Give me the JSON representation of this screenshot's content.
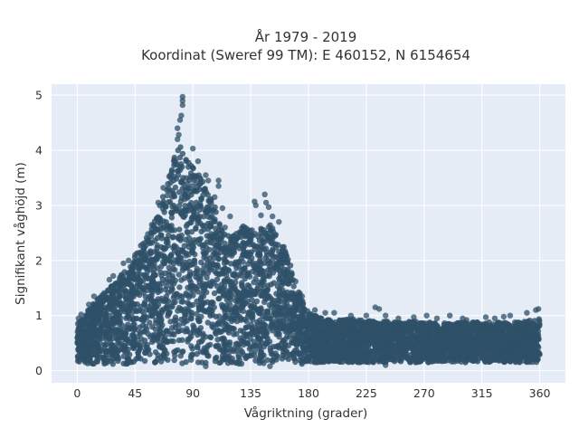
{
  "chart_data": {
    "type": "scatter",
    "title_line1": "År 1979 - 2019",
    "title_line2": "Koordinat (Sweref 99 TM): E 460152, N 6154654",
    "xlabel": "Vågriktning (grader)",
    "ylabel": "Signifikant våghöjd (m)",
    "xlim": [
      -20,
      380
    ],
    "ylim": [
      -0.22,
      5.2
    ],
    "x_ticks": [
      0,
      45,
      90,
      135,
      180,
      225,
      270,
      315,
      360
    ],
    "y_ticks": [
      0,
      1,
      2,
      3,
      4,
      5
    ],
    "grid": true,
    "background_color": "#e5ecf6",
    "marker_color": "#2e5068",
    "envelope": {
      "x": [
        0,
        10,
        20,
        30,
        40,
        50,
        60,
        70,
        75,
        80,
        85,
        90,
        95,
        100,
        105,
        110,
        115,
        120,
        125,
        130,
        135,
        140,
        145,
        150,
        155,
        160,
        165,
        170,
        175,
        180,
        190,
        200,
        210,
        220,
        230,
        240,
        250,
        260,
        270,
        280,
        290,
        300,
        310,
        320,
        330,
        340,
        350,
        360
      ],
      "y_min": [
        0.15,
        0.12,
        0.12,
        0.12,
        0.12,
        0.12,
        0.12,
        0.12,
        0.12,
        0.12,
        0.12,
        0.12,
        0.12,
        0.12,
        0.12,
        0.12,
        0.12,
        0.12,
        0.12,
        0.12,
        0.12,
        0.12,
        0.12,
        0.12,
        0.12,
        0.12,
        0.12,
        0.12,
        0.12,
        0.12,
        0.15,
        0.15,
        0.15,
        0.15,
        0.15,
        0.15,
        0.15,
        0.15,
        0.15,
        0.15,
        0.15,
        0.15,
        0.15,
        0.15,
        0.15,
        0.15,
        0.15,
        0.15
      ],
      "y_max": [
        0.85,
        1.15,
        1.4,
        1.65,
        1.9,
        2.3,
        2.7,
        3.4,
        3.9,
        4.1,
        3.95,
        3.7,
        3.55,
        3.35,
        3.1,
        2.8,
        2.55,
        2.45,
        2.5,
        2.7,
        2.6,
        2.55,
        2.6,
        2.7,
        2.5,
        2.3,
        2.0,
        1.6,
        1.3,
        1.05,
        0.95,
        0.9,
        0.95,
        0.92,
        0.9,
        0.9,
        0.88,
        0.9,
        0.88,
        0.88,
        0.85,
        0.88,
        0.88,
        0.88,
        0.88,
        0.88,
        0.9,
        0.95
      ]
    },
    "outliers": [
      {
        "x": 82,
        "y": 4.97
      },
      {
        "x": 82,
        "y": 4.9
      },
      {
        "x": 82,
        "y": 4.82
      },
      {
        "x": 81,
        "y": 4.63
      },
      {
        "x": 80,
        "y": 4.55
      },
      {
        "x": 78,
        "y": 4.4
      },
      {
        "x": 79,
        "y": 4.28
      },
      {
        "x": 78,
        "y": 4.2
      },
      {
        "x": 90,
        "y": 4.03
      },
      {
        "x": 94,
        "y": 3.8
      },
      {
        "x": 100,
        "y": 3.55
      },
      {
        "x": 102,
        "y": 3.45
      },
      {
        "x": 110,
        "y": 3.45
      },
      {
        "x": 110,
        "y": 3.35
      },
      {
        "x": 67,
        "y": 3.32
      },
      {
        "x": 70,
        "y": 3.18
      },
      {
        "x": 63,
        "y": 3.05
      },
      {
        "x": 107,
        "y": 3.15
      },
      {
        "x": 113,
        "y": 2.95
      },
      {
        "x": 119,
        "y": 2.8
      },
      {
        "x": 115,
        "y": 2.6
      },
      {
        "x": 138,
        "y": 3.07
      },
      {
        "x": 139,
        "y": 3.0
      },
      {
        "x": 146,
        "y": 3.2
      },
      {
        "x": 147,
        "y": 3.05
      },
      {
        "x": 149,
        "y": 2.97
      },
      {
        "x": 152,
        "y": 2.8
      },
      {
        "x": 143,
        "y": 2.82
      },
      {
        "x": 157,
        "y": 2.7
      },
      {
        "x": 136,
        "y": 2.55
      },
      {
        "x": 132,
        "y": 2.48
      },
      {
        "x": 128,
        "y": 2.5
      },
      {
        "x": 58,
        "y": 2.65
      },
      {
        "x": 55,
        "y": 2.48
      },
      {
        "x": 51,
        "y": 2.3
      },
      {
        "x": 45,
        "y": 2.1
      },
      {
        "x": 40,
        "y": 2.0
      },
      {
        "x": 36,
        "y": 1.95
      },
      {
        "x": 35,
        "y": 1.68
      },
      {
        "x": 28,
        "y": 1.72
      },
      {
        "x": 25,
        "y": 1.65
      },
      {
        "x": 13,
        "y": 1.35
      },
      {
        "x": 9,
        "y": 1.2
      },
      {
        "x": 3,
        "y": 1.02
      },
      {
        "x": 1,
        "y": 0.95
      },
      {
        "x": 170,
        "y": 1.62
      },
      {
        "x": 175,
        "y": 1.35
      },
      {
        "x": 185,
        "y": 1.1
      },
      {
        "x": 193,
        "y": 1.05
      },
      {
        "x": 200,
        "y": 1.05
      },
      {
        "x": 213,
        "y": 1.0
      },
      {
        "x": 225,
        "y": 1.0
      },
      {
        "x": 232,
        "y": 1.15
      },
      {
        "x": 235,
        "y": 1.12
      },
      {
        "x": 240,
        "y": 1.0
      },
      {
        "x": 250,
        "y": 0.95
      },
      {
        "x": 262,
        "y": 0.97
      },
      {
        "x": 272,
        "y": 1.0
      },
      {
        "x": 280,
        "y": 0.95
      },
      {
        "x": 290,
        "y": 1.0
      },
      {
        "x": 300,
        "y": 0.95
      },
      {
        "x": 303,
        "y": 0.92
      },
      {
        "x": 318,
        "y": 0.97
      },
      {
        "x": 325,
        "y": 0.95
      },
      {
        "x": 332,
        "y": 0.98
      },
      {
        "x": 337,
        "y": 1.0
      },
      {
        "x": 350,
        "y": 1.05
      },
      {
        "x": 357,
        "y": 1.1
      },
      {
        "x": 359,
        "y": 1.12
      },
      {
        "x": 100,
        "y": 0.08
      },
      {
        "x": 150,
        "y": 0.08
      },
      {
        "x": 240,
        "y": 0.1
      }
    ]
  }
}
